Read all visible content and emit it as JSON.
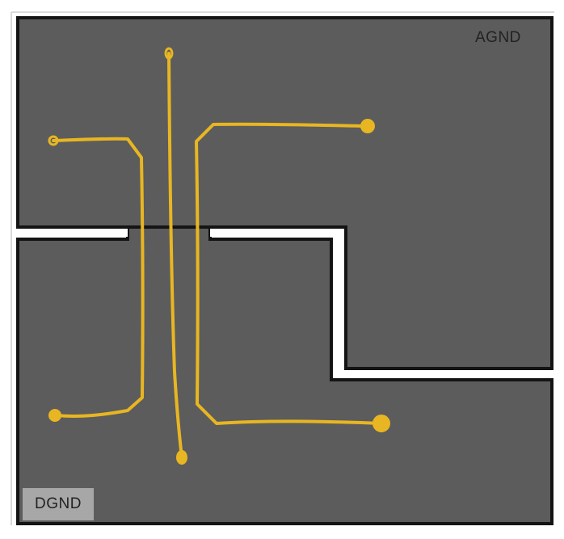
{
  "labels": {
    "top_right": "AGND",
    "bottom_left": "DGND"
  },
  "colors": {
    "plane_fill": "#5c5c5c",
    "plane_outline": "#141414",
    "split_gap": "#ffffff",
    "trace": "#e8b622",
    "label_box": "#a7a7a7",
    "label_text": "#222222"
  }
}
